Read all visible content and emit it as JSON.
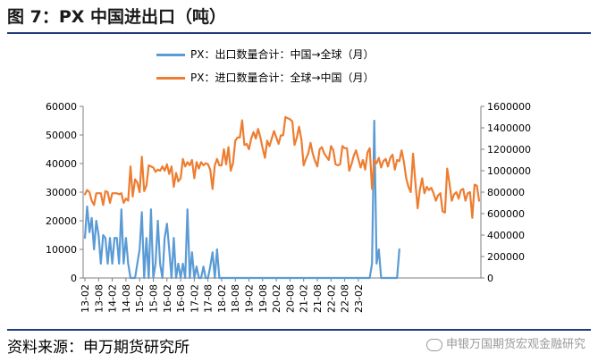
{
  "title": "图 7：PX 中国进出口（吨）",
  "source": "资料来源：申万期货研究所",
  "watermark": "申银万国期货宏观金融研究",
  "chart_data": {
    "type": "line",
    "grid": false,
    "y_left": {
      "min": 0,
      "max": 60000,
      "ticks": [
        "0",
        "10000",
        "20000",
        "30000",
        "40000",
        "50000",
        "60000"
      ]
    },
    "y_right": {
      "min": 0,
      "max": 1600000,
      "ticks": [
        "0",
        "200000",
        "400000",
        "600000",
        "800000",
        "1000000",
        "1200000",
        "1400000",
        "1600000"
      ]
    },
    "x_ticks": [
      "13-02",
      "13-08",
      "14-02",
      "14-08",
      "15-02",
      "15-08",
      "16-02",
      "16-08",
      "17-02",
      "17-08",
      "18-02",
      "18-08",
      "19-02",
      "19-08",
      "20-02",
      "20-08",
      "21-02",
      "21-08",
      "22-02",
      "22-08",
      "23-02"
    ],
    "series": [
      {
        "name": "PX：出口数量合计：中国→全球（月）",
        "color": "#5b9bd5",
        "axis": "left",
        "start": "2013-02",
        "values": [
          14000,
          25000,
          16000,
          21000,
          10000,
          20000,
          15000,
          5000,
          15000,
          14000,
          5000,
          14000,
          5000,
          14000,
          14000,
          5000,
          24000,
          5000,
          14000,
          5000,
          0,
          0,
          0,
          5000,
          10000,
          23000,
          0,
          14000,
          0,
          24000,
          0,
          5000,
          20000,
          5000,
          0,
          14000,
          19000,
          10000,
          0,
          14000,
          0,
          5000,
          0,
          5000,
          0,
          24000,
          0,
          9000,
          0,
          4000,
          0,
          0,
          4000,
          0,
          0,
          4000,
          9000,
          0,
          10000,
          0,
          0,
          0,
          0,
          0,
          0,
          0,
          0,
          0,
          0,
          0,
          0,
          0,
          0,
          0,
          0,
          0,
          0,
          0,
          0,
          0,
          0,
          0,
          0,
          0,
          0,
          0,
          0,
          0,
          0,
          0,
          0,
          0,
          0,
          0,
          0,
          0,
          0,
          0,
          0,
          0,
          0,
          0,
          0,
          0,
          0,
          0,
          0,
          0,
          0,
          0,
          0,
          0,
          0,
          0,
          0,
          0,
          0,
          0,
          0,
          0,
          0,
          0,
          0,
          0,
          0,
          0,
          5000,
          55000,
          5000,
          10000,
          0,
          0,
          0,
          0,
          0,
          0,
          0,
          0,
          10000
        ]
      },
      {
        "name": "PX：进口数量合计：全球→中国（月）",
        "color": "#ed7d31",
        "axis": "right",
        "start": "2013-02",
        "values": [
          780000,
          820000,
          800000,
          720000,
          680000,
          790000,
          790000,
          790000,
          680000,
          810000,
          800000,
          700000,
          790000,
          790000,
          790000,
          780000,
          790000,
          700000,
          740000,
          720000,
          1040000,
          760000,
          920000,
          890000,
          800000,
          1130000,
          810000,
          860000,
          1050000,
          1040000,
          1030000,
          990000,
          1010000,
          1000000,
          1040000,
          1000000,
          1060000,
          970000,
          1040000,
          850000,
          980000,
          900000,
          930000,
          1110000,
          1040000,
          1080000,
          1050000,
          1100000,
          930000,
          1080000,
          1020000,
          1080000,
          1050000,
          1070000,
          1060000,
          1010000,
          830000,
          1050000,
          1110000,
          1050000,
          1050000,
          1200000,
          1060000,
          1220000,
          1000000,
          1070000,
          1280000,
          1310000,
          1310000,
          1470000,
          1240000,
          1250000,
          1200000,
          1300000,
          1360000,
          1300000,
          1390000,
          1310000,
          1210000,
          1120000,
          1280000,
          1230000,
          1300000,
          1370000,
          1310000,
          1250000,
          1330000,
          1330000,
          1500000,
          1490000,
          1480000,
          1460000,
          1240000,
          1310000,
          1410000,
          1290000,
          1050000,
          1110000,
          1160000,
          1260000,
          1160000,
          1090000,
          1040000,
          1200000,
          1220000,
          1160000,
          1130000,
          1100000,
          1230000,
          1190000,
          1060000,
          1050000,
          1060000,
          1230000,
          1210000,
          1210000,
          1000000,
          1060000,
          1140000,
          1190000,
          1110000,
          1030000,
          1100000,
          1010000,
          1170000,
          1210000,
          830000,
          1100000,
          1070000,
          1120000,
          1030000,
          1090000,
          1110000,
          1040000,
          1120000,
          1150000,
          1010000,
          1100000,
          1090000,
          1190000,
          1080000,
          930000,
          850000,
          800000,
          1160000,
          900000,
          650000,
          820000,
          930000,
          790000,
          850000,
          820000,
          840000,
          790000,
          720000,
          770000,
          790000,
          620000,
          610000,
          1020000,
          880000,
          720000,
          780000,
          800000,
          740000,
          820000,
          830000,
          720000,
          790000,
          800000,
          560000,
          870000,
          860000,
          720000
        ]
      }
    ]
  }
}
